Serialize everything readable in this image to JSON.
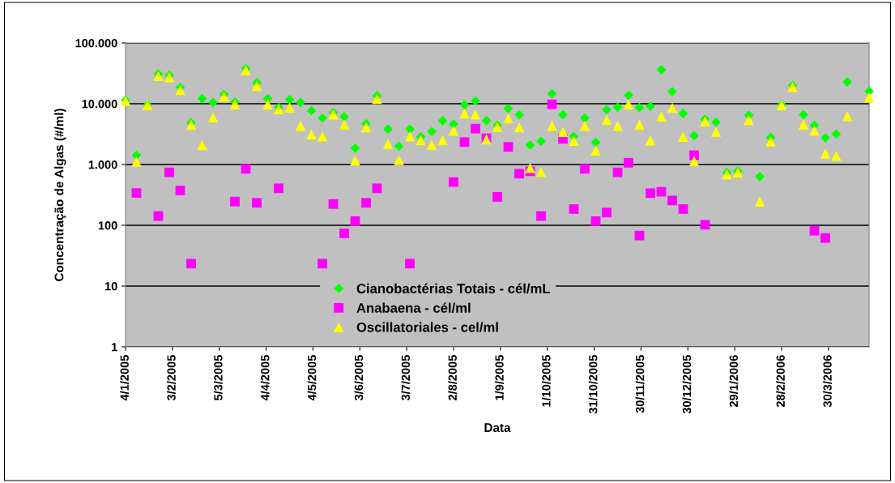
{
  "chart_data": {
    "type": "scatter",
    "xlabel": "Data",
    "ylabel": "Concentração de Algas (#/ml)",
    "log": "y",
    "grid": "y",
    "legend": "bottom",
    "x": [
      "2005-01-04",
      "2005-01-11",
      "2005-01-18",
      "2005-01-25",
      "2005-02-01",
      "2005-02-08",
      "2005-02-15",
      "2005-02-22",
      "2005-03-01",
      "2005-03-08",
      "2005-03-15",
      "2005-03-22",
      "2005-03-29",
      "2005-04-05",
      "2005-04-12",
      "2005-04-19",
      "2005-04-26",
      "2005-05-03",
      "2005-05-10",
      "2005-05-17",
      "2005-05-24",
      "2005-05-31",
      "2005-06-07",
      "2005-06-14",
      "2005-06-21",
      "2005-06-28",
      "2005-07-05",
      "2005-07-12",
      "2005-07-19",
      "2005-07-26",
      "2005-08-02",
      "2005-08-09",
      "2005-08-16",
      "2005-08-23",
      "2005-08-30",
      "2005-09-06",
      "2005-09-13",
      "2005-09-20",
      "2005-09-27",
      "2005-10-04",
      "2005-10-11",
      "2005-10-18",
      "2005-10-25",
      "2005-11-01",
      "2005-11-08",
      "2005-11-15",
      "2005-11-22",
      "2005-11-29",
      "2005-12-06",
      "2005-12-13",
      "2005-12-20",
      "2005-12-27",
      "2006-01-03",
      "2006-01-10",
      "2006-01-17",
      "2006-01-24",
      "2006-01-31",
      "2006-02-07",
      "2006-02-14",
      "2006-02-21",
      "2006-02-28",
      "2006-03-07",
      "2006-03-14",
      "2006-03-21",
      "2006-03-28",
      "2006-04-04",
      "2006-04-11",
      "2006-04-25"
    ],
    "xlim": [
      "2005-01-04",
      "2006-04-25"
    ],
    "xticks": [
      {
        "value": "2005-01-04",
        "label": "4/1/2005"
      },
      {
        "value": "2005-02-03",
        "label": "3/2/2005"
      },
      {
        "value": "2005-03-05",
        "label": "5/3/2005"
      },
      {
        "value": "2005-04-04",
        "label": "4/4/2005"
      },
      {
        "value": "2005-05-04",
        "label": "4/5/2005"
      },
      {
        "value": "2005-06-03",
        "label": "3/6/2005"
      },
      {
        "value": "2005-07-03",
        "label": "3/7/2005"
      },
      {
        "value": "2005-08-02",
        "label": "2/8/2005"
      },
      {
        "value": "2005-09-01",
        "label": "1/9/2005"
      },
      {
        "value": "2005-10-01",
        "label": "1/10/2005"
      },
      {
        "value": "2005-10-31",
        "label": "31/10/2005"
      },
      {
        "value": "2005-11-30",
        "label": "30/11/2005"
      },
      {
        "value": "2005-12-30",
        "label": "30/12/2005"
      },
      {
        "value": "2006-01-29",
        "label": "29/1/2006"
      },
      {
        "value": "2006-02-28",
        "label": "28/2/2006"
      },
      {
        "value": "2006-03-30",
        "label": "30/3/2006"
      }
    ],
    "ylim": [
      1,
      100000
    ],
    "yticks": [
      1,
      10,
      100,
      {
        "value": 1000,
        "label": "1.000"
      },
      {
        "value": 10000,
        "label": "10.000"
      },
      {
        "value": 100000,
        "label": "100.000"
      }
    ],
    "series": [
      {
        "name": "Cianobactérias Totais - cél/mL",
        "color": "#00ff00",
        "marker": "diamond",
        "values": [
          11400,
          1420,
          9600,
          30800,
          29300,
          18500,
          4830,
          12100,
          10500,
          14200,
          10700,
          37800,
          22200,
          12100,
          8670,
          11700,
          10500,
          7660,
          5810,
          7130,
          6120,
          1850,
          4690,
          13500,
          3820,
          2000,
          3820,
          2840,
          3490,
          5250,
          4590,
          9600,
          11100,
          5250,
          4410,
          8320,
          6580,
          2090,
          2410,
          14600,
          6580,
          2900,
          5810,
          2310,
          7980,
          8750,
          13900,
          8670,
          9110,
          36300,
          15800,
          6920,
          2990,
          5580,
          4990,
          736,
          774,
          6440,
          631,
          2780,
          9600,
          19900,
          6580,
          4410,
          2750,
          3180,
          22900,
          16000
        ]
      },
      {
        "name": "Anabaena - cél/ml",
        "color": "#ff00ff",
        "marker": "square",
        "values": [
          null,
          340,
          null,
          142,
          743,
          374,
          23.4,
          null,
          null,
          null,
          246,
          849,
          234,
          null,
          406,
          null,
          null,
          null,
          23.4,
          224,
          73.6,
          117,
          234,
          406,
          null,
          null,
          23.4,
          null,
          null,
          null,
          514,
          2340,
          3900,
          2700,
          293,
          1950,
          706,
          774,
          142,
          9800,
          2640,
          185,
          849,
          117,
          162,
          743,
          1070,
          67.8,
          338,
          356,
          256,
          185,
          1420,
          102,
          null,
          null,
          null,
          null,
          null,
          null,
          null,
          null,
          null,
          81.5,
          61.8,
          null,
          null,
          null
        ]
      },
      {
        "name": "Oscillatoriales - cel/ml",
        "color": "#ffff00",
        "marker": "triangle",
        "values": [
          11100,
          1110,
          9500,
          28700,
          27300,
          16900,
          4500,
          2090,
          6000,
          13100,
          9800,
          35600,
          19700,
          9800,
          8150,
          8670,
          4330,
          3150,
          2900,
          6640,
          4550,
          1170,
          4110,
          12000,
          2180,
          1180,
          2900,
          2510,
          2110,
          2510,
          3590,
          6920,
          6640,
          2590,
          4150,
          5750,
          4110,
          875,
          751,
          4330,
          3450,
          2460,
          4330,
          1700,
          5410,
          4330,
          9800,
          4500,
          2490,
          6180,
          8580,
          2870,
          1130,
          5140,
          3450,
          686,
          736,
          5410,
          246,
          2390,
          9500,
          18900,
          4550,
          3630,
          1510,
          1390,
          6250,
          12650
        ]
      }
    ]
  }
}
